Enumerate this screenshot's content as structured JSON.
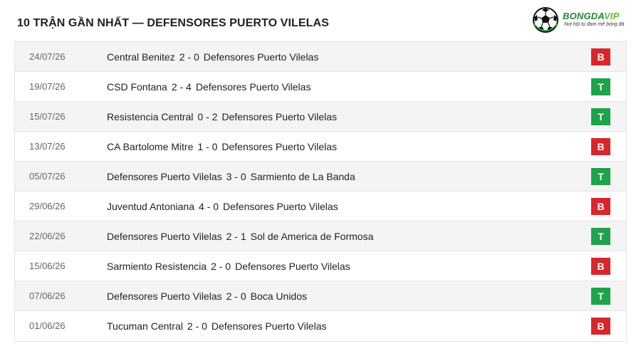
{
  "header": {
    "title": "10 TRẬN GẦN NHẤT — DEFENSORES PUERTO VILELAS"
  },
  "brand": {
    "name_part1": "BONGDA",
    "name_part2": "VIP",
    "tagline": "Nơi hội tụ đam mê bóng đá",
    "icon": "soccer-ball-icon",
    "colors": {
      "dark_green": "#1c8a3c",
      "light_green": "#5bbf2a"
    }
  },
  "result_colors": {
    "B": "#d9262a",
    "T": "#1ea24a"
  },
  "matches": [
    {
      "date": "24/07/26",
      "home": "Central Benitez",
      "score": "2 - 0",
      "away": "Defensores Puerto Vilelas",
      "result": "B"
    },
    {
      "date": "19/07/26",
      "home": "CSD Fontana",
      "score": "2 - 4",
      "away": "Defensores Puerto Vilelas",
      "result": "T"
    },
    {
      "date": "15/07/26",
      "home": "Resistencia Central",
      "score": "0 - 2",
      "away": "Defensores Puerto Vilelas",
      "result": "T"
    },
    {
      "date": "13/07/26",
      "home": "CA Bartolome Mitre",
      "score": "1 - 0",
      "away": "Defensores Puerto Vilelas",
      "result": "B"
    },
    {
      "date": "05/07/26",
      "home": "Defensores Puerto Vilelas",
      "score": "3 - 0",
      "away": "Sarmiento de La Banda",
      "result": "T"
    },
    {
      "date": "29/06/26",
      "home": "Juventud Antoniana",
      "score": "4 - 0",
      "away": "Defensores Puerto Vilelas",
      "result": "B"
    },
    {
      "date": "22/06/26",
      "home": "Defensores Puerto Vilelas",
      "score": "2 - 1",
      "away": "Sol de America de Formosa",
      "result": "T"
    },
    {
      "date": "15/06/26",
      "home": "Sarmiento Resistencia",
      "score": "2 - 0",
      "away": "Defensores Puerto Vilelas",
      "result": "B"
    },
    {
      "date": "07/06/26",
      "home": "Defensores Puerto Vilelas",
      "score": "2 - 0",
      "away": "Boca Unidos",
      "result": "T"
    },
    {
      "date": "01/06/26",
      "home": "Tucuman Central",
      "score": "2 - 0",
      "away": "Defensores Puerto Vilelas",
      "result": "B"
    }
  ]
}
